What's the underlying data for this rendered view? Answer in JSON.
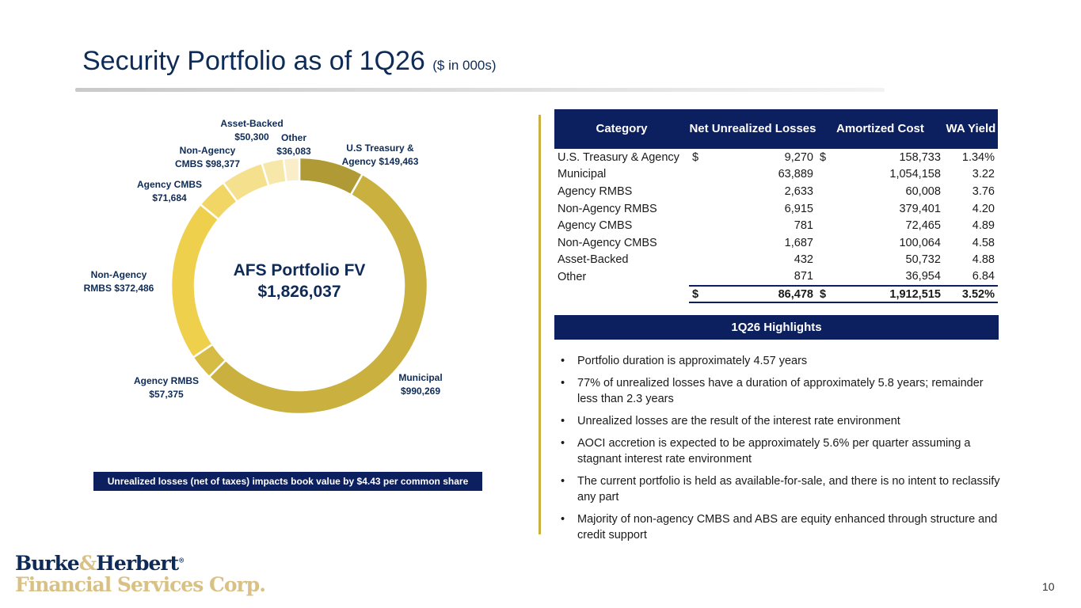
{
  "header": {
    "title": "Security Portfolio as of 1Q26",
    "subtitle": "($ in 000s)"
  },
  "chart_data": {
    "type": "pie",
    "variant": "donut",
    "center_title": "AFS Portfolio FV",
    "center_value": "$1,826,037",
    "categories": [
      "U.S Treasury & Agency",
      "Municipal",
      "Agency RMBS",
      "Non-Agency RMBS",
      "Agency CMBS",
      "Non-Agency CMBS",
      "Asset-Backed",
      "Other"
    ],
    "values": [
      149463,
      990269,
      57375,
      372486,
      71684,
      98377,
      50300,
      36083
    ],
    "labels": [
      [
        "U.S Treasury &",
        "Agency  $149,463"
      ],
      [
        "Municipal",
        "$990,269"
      ],
      [
        "Agency RMBS",
        "$57,375"
      ],
      [
        "Non-Agency",
        "RMBS  $372,486"
      ],
      [
        "Agency CMBS",
        "$71,684"
      ],
      [
        "Non-Agency",
        "CMBS  $98,377"
      ],
      [
        "Asset-Backed",
        "$50,300"
      ],
      [
        "Other",
        "$36,083"
      ]
    ],
    "colors": [
      "#b09a35",
      "#c9b03f",
      "#d6bc44",
      "#efd04d",
      "#f2d665",
      "#f5e08e",
      "#f7e7a8",
      "#f9eec8"
    ]
  },
  "note": "Unrealized losses (net of taxes) impacts book value by $4.43 per common share",
  "table": {
    "headers": [
      "Category",
      "Net Unrealized Losses",
      "Amortized Cost",
      "WA Yield"
    ],
    "rows": [
      [
        "U.S. Treasury & Agency",
        "$",
        "9,270",
        "$",
        "158,733",
        "1.34%"
      ],
      [
        "Municipal",
        "",
        "63,889",
        "",
        "1,054,158",
        "3.22"
      ],
      [
        "Agency RMBS",
        "",
        "2,633",
        "",
        "60,008",
        "3.76"
      ],
      [
        "Non-Agency RMBS",
        "",
        "6,915",
        "",
        "379,401",
        "4.20"
      ],
      [
        "Agency CMBS",
        "",
        "781",
        "",
        "72,465",
        "4.89"
      ],
      [
        "Non-Agency CMBS",
        "",
        "1,687",
        "",
        "100,064",
        "4.58"
      ],
      [
        "Asset-Backed",
        "",
        "432",
        "",
        "50,732",
        "4.88"
      ],
      [
        "Other",
        "",
        "871",
        "",
        "36,954",
        "6.84"
      ]
    ],
    "total": [
      "",
      "$",
      "86,478",
      "$",
      "1,912,515",
      "3.52%"
    ]
  },
  "highlights": {
    "title": "1Q26 Highlights",
    "items": [
      "Portfolio duration is approximately 4.57 years",
      "77% of unrealized losses have a duration of approximately 5.8 years; remainder less than 2.3 years",
      "Unrealized losses are the result of the interest rate environment",
      "AOCI accretion is expected to be approximately 5.6% per quarter assuming a stagnant interest rate environment",
      "The current portfolio is held as available-for-sale, and there is no intent to reclassify any part",
      "Majority of non-agency CMBS and ABS are equity enhanced through structure and credit support"
    ]
  },
  "logo": {
    "line1a": "Burke",
    "amp": "&",
    "line1b": "Herbert",
    "reg": "®",
    "line2": "Financial Services Corp."
  },
  "page_number": "10"
}
